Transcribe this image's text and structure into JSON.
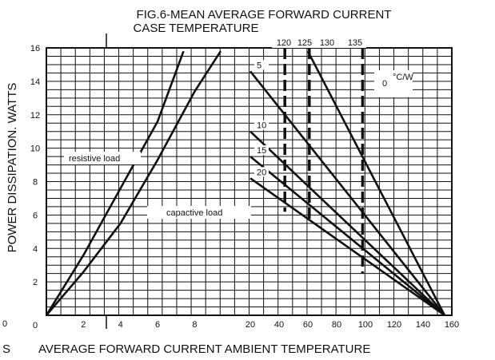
{
  "chart_data": {
    "type": "line",
    "title": "FIG.6-MEAN AVERAGE FORWARD CURRENT",
    "subtitle": "CASE TEMPERATURE",
    "ylabel": "POWER DISSIPATION. WATTS",
    "xlabel_left_fragment": "S",
    "xlabel": "AVERAGE FORWARD CURRENT AMBIENT TEMPERATURE",
    "ylim": [
      0,
      16
    ],
    "y_ticks": [
      "0",
      "2",
      "4",
      "6",
      "8",
      "10",
      "12",
      "14",
      "16"
    ],
    "y_edge_label": "0",
    "left_panel": {
      "xlabel": "AVERAGE FORWARD CURRENT",
      "xlim": [
        0,
        11
      ],
      "x_ticks": [
        "2",
        "4",
        "6",
        "8"
      ],
      "series": [
        {
          "name": "resistive load",
          "points": [
            [
              0.0,
              0.0
            ],
            [
              2.0,
              3.6
            ],
            [
              4.0,
              7.6
            ],
            [
              6.0,
              11.6
            ],
            [
              7.4,
              15.8
            ]
          ]
        },
        {
          "name": "capactive load",
          "points": [
            [
              0.0,
              0.0
            ],
            [
              2.0,
              2.6
            ],
            [
              4.0,
              5.5
            ],
            [
              6.0,
              9.3
            ],
            [
              8.0,
              13.4
            ],
            [
              9.4,
              15.8
            ]
          ]
        }
      ]
    },
    "right_panel": {
      "xlabel": "AMBIENT TEMPERATURE",
      "xlim": [
        20,
        160
      ],
      "x_ticks": [
        "20",
        "40",
        "60",
        "80",
        "100",
        "120",
        "140",
        "160"
      ],
      "thermal_resistance_label": "°C/W",
      "thermal_resistance_lines": [
        {
          "name": "0",
          "points": [
            [
              60,
              15.8
            ],
            [
              155,
              0
            ]
          ]
        },
        {
          "name": "5",
          "points": [
            [
              20,
              14.6
            ],
            [
              155,
              0
            ]
          ]
        },
        {
          "name": "10",
          "points": [
            [
              20,
              11.0
            ],
            [
              155,
              0
            ]
          ]
        },
        {
          "name": "15",
          "points": [
            [
              20,
              9.5
            ],
            [
              155,
              0
            ]
          ]
        },
        {
          "name": "20",
          "points": [
            [
              20,
              8.2
            ],
            [
              155,
              0
            ]
          ]
        }
      ],
      "case_temperature_lines": [
        {
          "name": "120",
          "x": 44,
          "y_range": [
            6.2,
            16
          ]
        },
        {
          "name": "125",
          "x": 61,
          "y_range": [
            5.5,
            16
          ]
        },
        {
          "name": "130",
          "x": 61,
          "y_range": [
            5.5,
            16
          ]
        },
        {
          "name": "135",
          "x": 98,
          "y_range": [
            2.5,
            16
          ]
        }
      ]
    }
  }
}
